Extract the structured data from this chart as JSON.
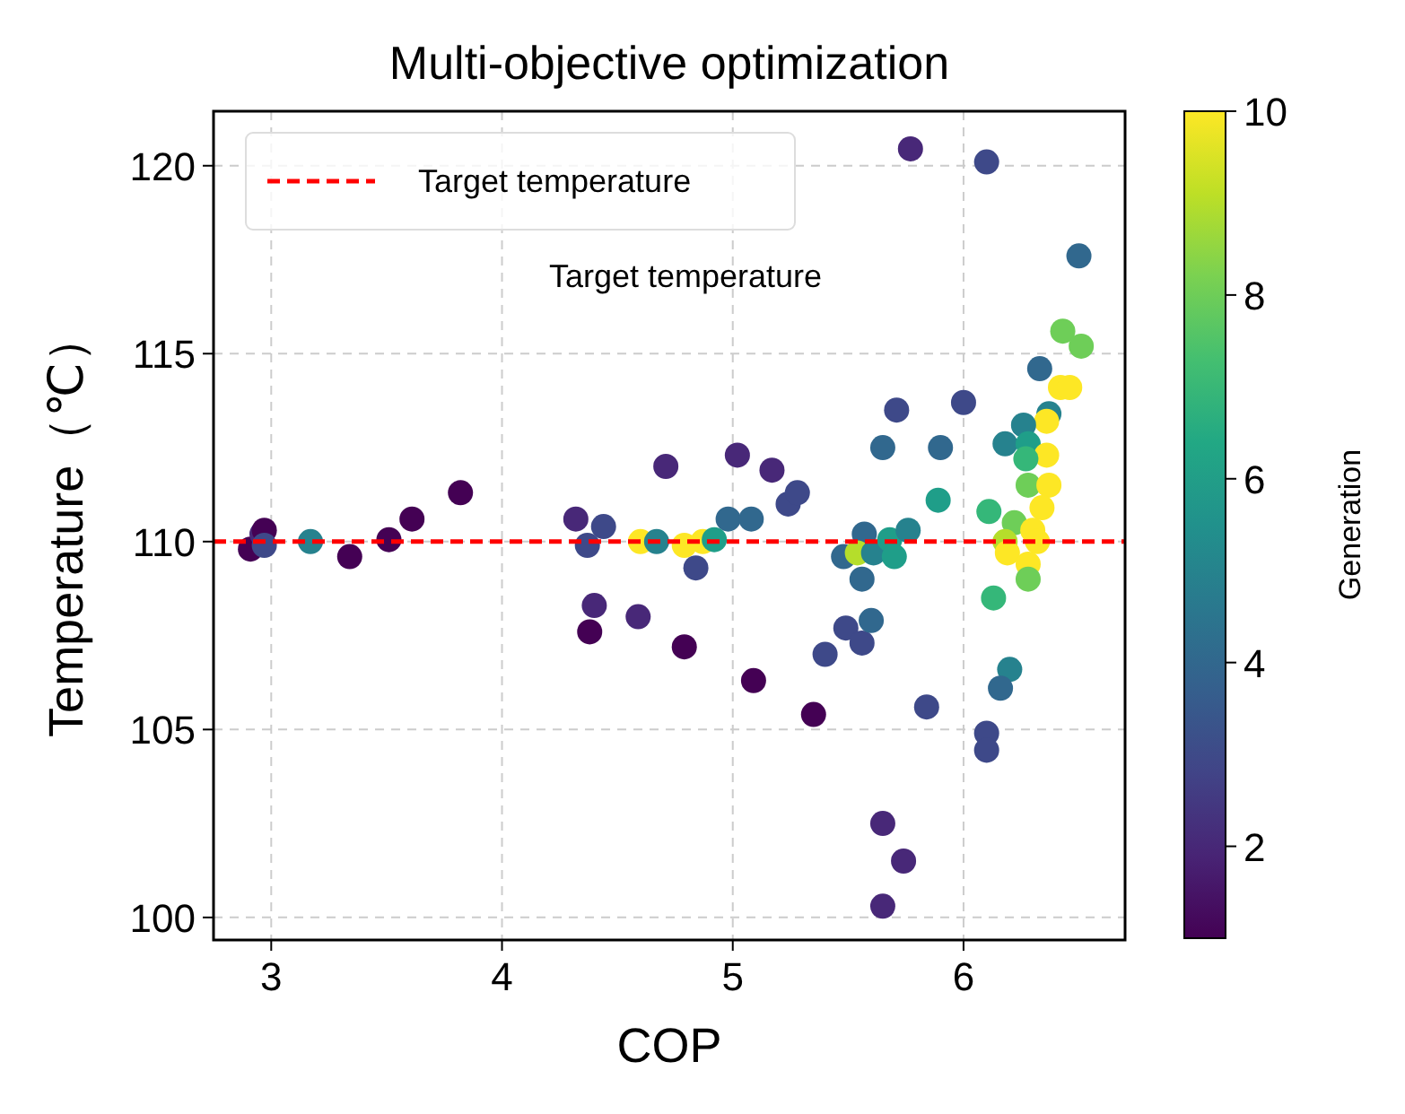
{
  "chart_data": {
    "type": "scatter",
    "title": "Multi-objective optimization",
    "xlabel": "COP",
    "ylabel": "Temperature（℃）",
    "clabel": "Generation",
    "xlim": [
      2.75,
      6.7
    ],
    "xticks": [
      3,
      4,
      5,
      6
    ],
    "ylim": [
      99.4,
      121.45
    ],
    "yticks": [
      100,
      105,
      110,
      115,
      120
    ],
    "clim": [
      1,
      10
    ],
    "cticks": [
      2,
      4,
      6,
      8,
      10
    ],
    "grid": true,
    "legend": "top left",
    "marker": "circle",
    "ref_lines": [
      {
        "axis": "y",
        "value": 110,
        "label": "Target temperature",
        "color": "#ff0000",
        "line_style": "dashed"
      }
    ],
    "annotations": [
      "Target temperature"
    ],
    "x": [
      2.91,
      2.96,
      2.97,
      2.97,
      3.17,
      3.34,
      3.51,
      3.61,
      3.82,
      4.32,
      4.37,
      4.44,
      4.4,
      4.38,
      4.59,
      4.6,
      4.67,
      4.71,
      4.79,
      4.79,
      4.84,
      4.87,
      4.92,
      4.98,
      5.02,
      5.08,
      5.09,
      5.17,
      5.24,
      5.28,
      5.35,
      5.4,
      5.49,
      5.56,
      5.6,
      5.48,
      5.56,
      5.57,
      5.54,
      5.61,
      5.68,
      5.7,
      5.76,
      5.65,
      5.71,
      5.65,
      5.74,
      5.65,
      5.77,
      5.84,
      5.9,
      5.89,
      6.1,
      6.5,
      6.0,
      6.43,
      6.51,
      6.33,
      6.42,
      6.46,
      6.37,
      6.36,
      6.26,
      6.18,
      6.28,
      6.36,
      6.27,
      6.28,
      6.37,
      6.34,
      6.11,
      6.22,
      6.3,
      6.18,
      6.19,
      6.32,
      6.28,
      6.28,
      6.13,
      6.2,
      6.16,
      6.1,
      6.1
    ],
    "values": [
      109.8,
      110.2,
      110.3,
      109.9,
      110.0,
      109.6,
      110.05,
      110.6,
      111.3,
      110.6,
      109.9,
      110.4,
      108.3,
      107.6,
      108.0,
      110.0,
      110.0,
      112.0,
      107.2,
      109.9,
      109.3,
      110.0,
      110.05,
      110.6,
      112.3,
      110.6,
      106.3,
      111.9,
      111.0,
      111.3,
      105.4,
      107.0,
      107.7,
      107.3,
      107.9,
      109.6,
      109.0,
      110.2,
      109.7,
      109.7,
      110.05,
      109.6,
      110.3,
      112.5,
      113.5,
      102.5,
      101.5,
      100.3,
      120.45,
      105.6,
      112.5,
      111.1,
      120.1,
      117.6,
      113.7,
      115.6,
      115.2,
      114.6,
      114.1,
      114.1,
      113.4,
      113.2,
      113.1,
      112.6,
      112.6,
      112.3,
      112.2,
      111.5,
      111.5,
      110.9,
      110.8,
      110.5,
      110.3,
      110.0,
      109.7,
      110.0,
      109.4,
      109.0,
      108.5,
      106.6,
      106.1,
      104.9,
      104.45
    ],
    "cvalues": [
      1,
      2,
      1,
      3,
      5,
      1,
      1,
      1,
      1,
      2,
      3,
      3,
      2,
      1,
      2,
      10,
      5,
      2,
      1,
      10,
      3,
      10,
      6,
      4,
      2,
      4,
      1,
      2,
      3,
      3,
      1,
      3,
      3,
      3,
      4,
      4,
      4,
      4,
      9,
      5,
      6,
      6,
      5,
      4,
      3,
      2,
      2,
      2,
      2,
      3,
      4,
      6,
      3,
      4,
      3,
      8,
      8,
      4,
      10,
      10,
      5,
      10,
      5,
      5,
      6,
      10,
      7,
      8,
      10,
      10,
      7,
      8,
      10,
      9,
      10,
      10,
      10,
      8,
      7,
      5,
      4,
      3,
      3
    ]
  }
}
